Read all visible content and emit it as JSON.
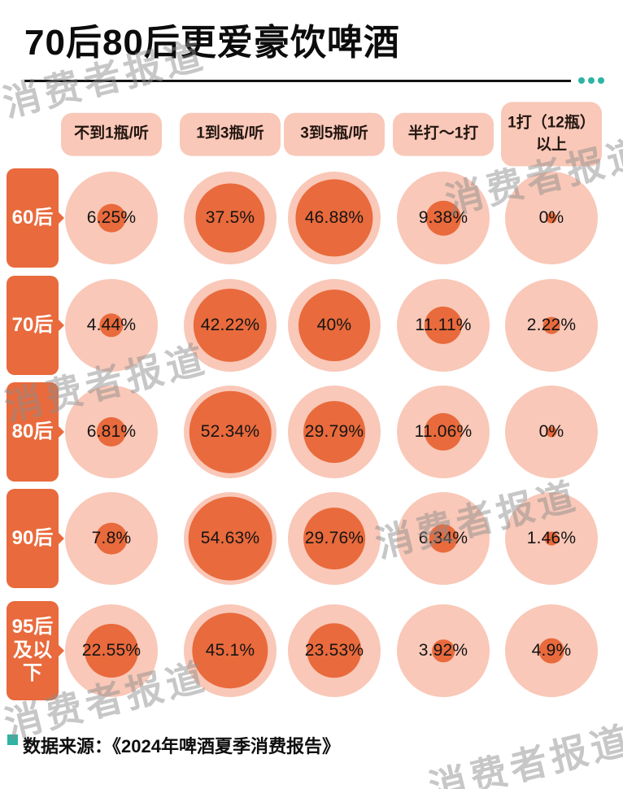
{
  "page": {
    "title": "70后80后更爱豪饮啤酒",
    "watermark": "消费者报道",
    "ellipsis": "..."
  },
  "colors": {
    "accent_orange": "#E96A3C",
    "light_pink": "#F9C8B8",
    "teal": "#2FB3A3",
    "watermark_gray": "#8C8C8C",
    "text": "#141414"
  },
  "header": {
    "columns_display": [
      "不到1瓶/听",
      "1到3瓶/听",
      "3到5瓶/听",
      "半打～1打",
      "1打（12瓶）\n以上"
    ]
  },
  "chart_data": {
    "type": "heatmap",
    "subtype": "bubble-matrix",
    "title": "70后80后更爱豪饮啤酒",
    "columns": [
      "不到1瓶/听",
      "1到3瓶/听",
      "3到5瓶/听",
      "半打～1打",
      "1打（12瓶）以上"
    ],
    "rows": [
      "60后",
      "70后",
      "80后",
      "90后",
      "95后及以下"
    ],
    "unit": "%",
    "values": [
      [
        6.25,
        37.5,
        46.88,
        9.38,
        0
      ],
      [
        4.44,
        42.22,
        40,
        11.11,
        2.22
      ],
      [
        6.81,
        52.34,
        29.79,
        11.06,
        0
      ],
      [
        7.8,
        54.63,
        29.76,
        6.34,
        1.46
      ],
      [
        22.55,
        45.1,
        23.53,
        3.92,
        4.9
      ]
    ],
    "labels": [
      [
        "6.25%",
        "37.5%",
        "46.88%",
        "9.38%",
        "0%"
      ],
      [
        "4.44%",
        "42.22%",
        "40%",
        "11.11%",
        "2.22%"
      ],
      [
        "6.81%",
        "52.34%",
        "29.79%",
        "11.06%",
        "0%"
      ],
      [
        "7.8%",
        "54.63%",
        "29.76%",
        "6.34%",
        "1.46%"
      ],
      [
        "22.55%",
        "45.1%",
        "23.53%",
        "3.92%",
        "4.9%"
      ]
    ],
    "legend_position": "none",
    "grid": false,
    "source": "数据来源：《2024年啤酒夏季消费报告》"
  }
}
